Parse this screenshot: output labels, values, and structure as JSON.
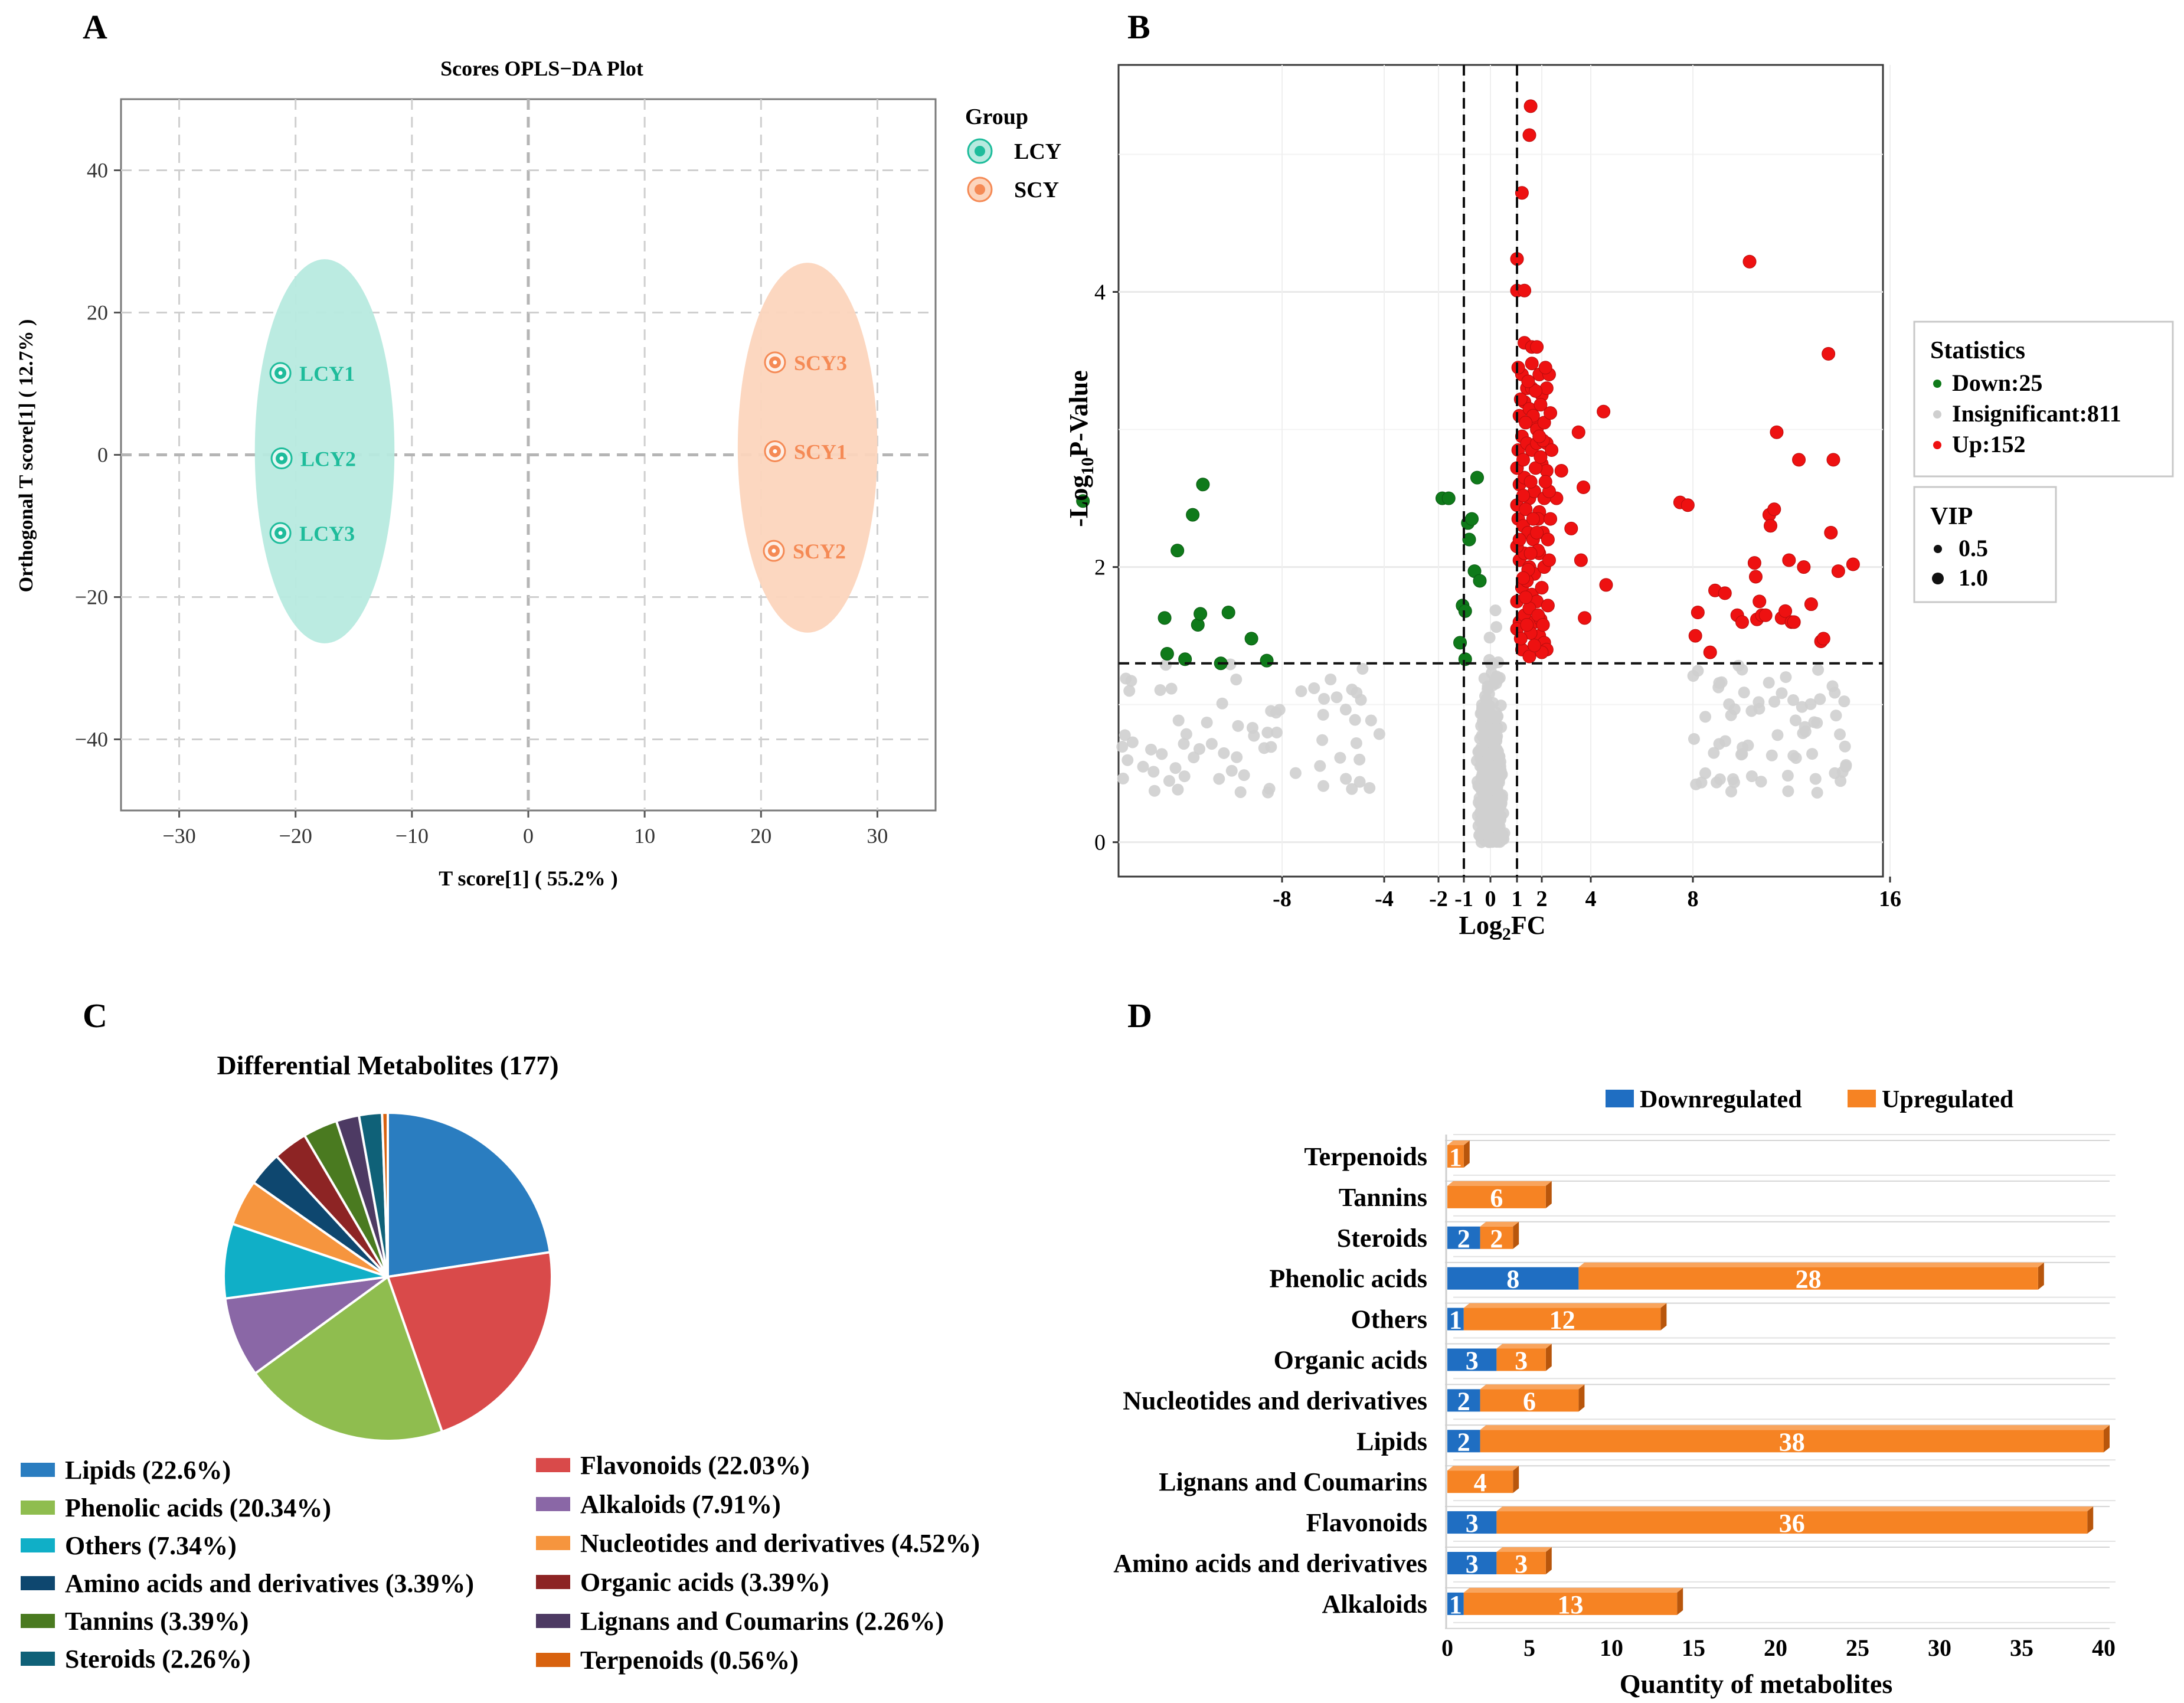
{
  "panels": {
    "a": "A",
    "b": "B",
    "c": "C",
    "d": "D"
  },
  "colors": {
    "lcy": "#1ebc9b",
    "scy": "#f58a55",
    "lcy_fill": "#b7eadf",
    "scy_fill": "#fcd5bd",
    "down": "#0f7a1a",
    "up": "#ee1111",
    "insig": "#cfcfcf",
    "bar_down": "#1f6ec2",
    "bar_up": "#f68323"
  },
  "chart_data": [
    {
      "id": "A",
      "type": "scatter",
      "title": "Scores OPLS−DA Plot",
      "xlabel": "T score[1] ( 55.2% )",
      "ylabel": "Orthogonal T score[1] ( 12.7% )",
      "xlim": [
        -35,
        35
      ],
      "ylim": [
        -50,
        50
      ],
      "xticks": [
        -30,
        -20,
        -10,
        0,
        10,
        20,
        30
      ],
      "xtick_labels": [
        "−30",
        "−20",
        "−10",
        "0",
        "10",
        "20",
        "30"
      ],
      "yticks": [
        -40,
        -20,
        0,
        20,
        40
      ],
      "ytick_labels": [
        "−40",
        "−20",
        "0",
        "20",
        "40"
      ],
      "legend_title": "Group",
      "groups": [
        {
          "name": "LCY",
          "ellipse": {
            "cx": -17.5,
            "cy": 0.5,
            "rx": 6,
            "ry": 27
          },
          "points": [
            {
              "label": "LCY1",
              "x": -21.3,
              "y": 11.5
            },
            {
              "label": "LCY2",
              "x": -21.2,
              "y": -0.5
            },
            {
              "label": "LCY3",
              "x": -21.3,
              "y": -11
            }
          ]
        },
        {
          "name": "SCY",
          "ellipse": {
            "cx": 24,
            "cy": 1,
            "rx": 6,
            "ry": 26
          },
          "points": [
            {
              "label": "SCY3",
              "x": 21.2,
              "y": 13
            },
            {
              "label": "SCY1",
              "x": 21.2,
              "y": 0.5
            },
            {
              "label": "SCY2",
              "x": 21.1,
              "y": -13.5
            }
          ]
        }
      ]
    },
    {
      "id": "B",
      "type": "scatter",
      "xlabel": "Log2FC",
      "ylabel": "-Log10P-Value",
      "xticks": [
        -8,
        -4,
        -2,
        -1,
        0,
        1,
        2,
        4,
        8,
        16
      ],
      "xtick_labels": [
        "-8",
        "-4",
        "-2",
        "-1",
        "0",
        "1",
        "2",
        "4",
        "8",
        "16"
      ],
      "yticks": [
        0,
        2,
        4
      ],
      "ylim": [
        -0.25,
        5.65
      ],
      "vlines": [
        -1,
        1
      ],
      "hline": 1.3,
      "statistics_title": "Statistics",
      "statistics": [
        {
          "label": "Down:25",
          "class": "down"
        },
        {
          "label": "Insignificant:811",
          "class": "insig"
        },
        {
          "label": "Up:152",
          "class": "up"
        }
      ],
      "vip_title": "VIP",
      "vip_legend": [
        "0.5",
        "1.0"
      ],
      "down_points": [
        [
          -15.8,
          2.48
        ],
        [
          -12.6,
          1.63
        ],
        [
          -12.5,
          1.37
        ],
        [
          -12.1,
          2.12
        ],
        [
          -11.8,
          1.33
        ],
        [
          -11.5,
          2.38
        ],
        [
          -11.3,
          1.58
        ],
        [
          -11.2,
          1.66
        ],
        [
          -11.1,
          2.6
        ],
        [
          -10.4,
          1.3
        ],
        [
          -10.1,
          1.67
        ],
        [
          -9.2,
          1.48
        ],
        [
          -8.6,
          1.32
        ],
        [
          -1.85,
          2.5
        ],
        [
          -1.6,
          2.5
        ],
        [
          -1.15,
          1.45
        ],
        [
          -1.05,
          1.72
        ],
        [
          -0.95,
          1.68
        ],
        [
          -0.85,
          2.32
        ],
        [
          -0.8,
          2.2
        ],
        [
          -0.7,
          2.35
        ],
        [
          -0.5,
          2.65
        ],
        [
          -0.95,
          1.33
        ],
        [
          -0.6,
          1.97
        ],
        [
          -0.4,
          1.9
        ]
      ],
      "insig_seed": 811,
      "up_points": [
        [
          1.2,
          4.72
        ],
        [
          1.5,
          5.14
        ],
        [
          1.55,
          5.35
        ],
        [
          1.0,
          4.24
        ],
        [
          1.0,
          4.01
        ],
        [
          1.3,
          4.01
        ],
        [
          1.3,
          3.63
        ],
        [
          1.6,
          3.6
        ],
        [
          1.8,
          3.6
        ],
        [
          1.2,
          3.4
        ],
        [
          1.4,
          3.3
        ],
        [
          1.6,
          3.3
        ],
        [
          1.9,
          3.4
        ],
        [
          2.0,
          3.25
        ],
        [
          2.2,
          3.3
        ],
        [
          2.3,
          3.4
        ],
        [
          1.1,
          3.1
        ],
        [
          1.3,
          3.2
        ],
        [
          1.5,
          3.15
        ],
        [
          1.7,
          3.05
        ],
        [
          1.8,
          3.0
        ],
        [
          1.95,
          3.18
        ],
        [
          2.1,
          3.05
        ],
        [
          2.2,
          2.9
        ],
        [
          1.05,
          2.85
        ],
        [
          1.2,
          2.95
        ],
        [
          1.4,
          2.9
        ],
        [
          1.6,
          2.85
        ],
        [
          1.8,
          2.9
        ],
        [
          2.0,
          2.75
        ],
        [
          2.2,
          2.7
        ],
        [
          2.4,
          2.85
        ],
        [
          2.8,
          2.7
        ],
        [
          3.5,
          2.98
        ],
        [
          2.6,
          2.5
        ],
        [
          3.7,
          2.58
        ],
        [
          1.1,
          2.6
        ],
        [
          1.3,
          2.65
        ],
        [
          1.5,
          2.5
        ],
        [
          1.7,
          2.55
        ],
        [
          1.9,
          2.4
        ],
        [
          2.1,
          2.5
        ],
        [
          2.3,
          2.55
        ],
        [
          1.05,
          2.35
        ],
        [
          1.25,
          2.3
        ],
        [
          1.45,
          2.25
        ],
        [
          1.65,
          2.2
        ],
        [
          1.85,
          2.35
        ],
        [
          2.05,
          2.25
        ],
        [
          2.25,
          2.2
        ],
        [
          1.1,
          2.05
        ],
        [
          1.3,
          2.1
        ],
        [
          1.5,
          2.0
        ],
        [
          1.7,
          1.95
        ],
        [
          1.9,
          2.1
        ],
        [
          2.1,
          2.0
        ],
        [
          1.2,
          1.85
        ],
        [
          1.4,
          1.9
        ],
        [
          1.6,
          1.8
        ],
        [
          1.8,
          1.75
        ],
        [
          2.0,
          1.85
        ],
        [
          1.1,
          1.6
        ],
        [
          1.3,
          1.65
        ],
        [
          1.5,
          1.7
        ],
        [
          1.7,
          1.6
        ],
        [
          1.9,
          1.5
        ],
        [
          2.1,
          1.45
        ],
        [
          1.2,
          1.4
        ],
        [
          1.5,
          1.35
        ],
        [
          2.2,
          1.4
        ],
        [
          1.0,
          1.55
        ],
        [
          1.0,
          1.75
        ],
        [
          1.0,
          2.15
        ],
        [
          1.0,
          2.45
        ],
        [
          1.0,
          2.72
        ],
        [
          1.05,
          3.45
        ],
        [
          1.15,
          3.22
        ],
        [
          1.25,
          2.78
        ],
        [
          1.35,
          2.42
        ],
        [
          1.45,
          1.98
        ],
        [
          1.55,
          1.52
        ],
        [
          1.65,
          3.1
        ],
        [
          1.75,
          2.72
        ],
        [
          1.85,
          2.12
        ],
        [
          1.95,
          1.62
        ],
        [
          2.05,
          2.92
        ],
        [
          2.15,
          2.62
        ],
        [
          2.25,
          1.72
        ],
        [
          2.35,
          3.12
        ],
        [
          1.35,
          1.78
        ],
        [
          1.55,
          2.62
        ],
        [
          1.75,
          3.28
        ],
        [
          1.95,
          2.8
        ],
        [
          2.15,
          3.45
        ],
        [
          2.35,
          2.35
        ],
        [
          1.15,
          1.48
        ],
        [
          1.25,
          1.92
        ],
        [
          1.45,
          3.35
        ],
        [
          1.65,
          2.35
        ],
        [
          1.85,
          1.65
        ],
        [
          2.0,
          1.38
        ],
        [
          2.3,
          2.05
        ],
        [
          1.1,
          2.2
        ],
        [
          1.4,
          1.58
        ],
        [
          1.6,
          3.48
        ],
        [
          1.9,
          2.95
        ],
        [
          1.25,
          2.52
        ],
        [
          2.05,
          1.58
        ],
        [
          1.35,
          3.05
        ],
        [
          1.8,
          2.25
        ],
        [
          1.55,
          2.1
        ],
        [
          1.7,
          1.43
        ],
        [
          4.5,
          3.13
        ],
        [
          3.2,
          2.28
        ],
        [
          3.6,
          2.05
        ],
        [
          3.75,
          1.63
        ],
        [
          4.6,
          1.87
        ],
        [
          7.5,
          2.47
        ],
        [
          7.8,
          2.45
        ],
        [
          8.1,
          1.5
        ],
        [
          8.2,
          1.67
        ],
        [
          8.7,
          1.38
        ],
        [
          8.9,
          1.83
        ],
        [
          9.3,
          1.81
        ],
        [
          9.8,
          1.65
        ],
        [
          10.0,
          1.6
        ],
        [
          10.3,
          4.22
        ],
        [
          10.5,
          2.03
        ],
        [
          10.55,
          1.93
        ],
        [
          10.6,
          1.62
        ],
        [
          10.7,
          1.75
        ],
        [
          10.8,
          1.65
        ],
        [
          10.95,
          1.65
        ],
        [
          11.1,
          2.38
        ],
        [
          11.15,
          2.3
        ],
        [
          11.3,
          2.42
        ],
        [
          11.4,
          2.98
        ],
        [
          11.6,
          1.63
        ],
        [
          11.75,
          1.68
        ],
        [
          11.9,
          2.05
        ],
        [
          12.0,
          1.6
        ],
        [
          12.1,
          1.6
        ],
        [
          12.3,
          2.78
        ],
        [
          12.5,
          2.0
        ],
        [
          12.8,
          1.73
        ],
        [
          13.2,
          1.46
        ],
        [
          13.3,
          1.48
        ],
        [
          13.5,
          3.55
        ],
        [
          13.6,
          2.25
        ],
        [
          13.7,
          2.78
        ],
        [
          13.9,
          1.97
        ],
        [
          14.5,
          2.02
        ]
      ]
    },
    {
      "id": "C",
      "type": "pie",
      "title": "Differential Metabolites (177)",
      "slices": [
        {
          "label": "Lipids (22.6%)",
          "value": 22.6,
          "color": "#2a7dc0"
        },
        {
          "label": "Flavonoids (22.03%)",
          "value": 22.03,
          "color": "#d94a4a"
        },
        {
          "label": "Phenolic acids (20.34%)",
          "value": 20.34,
          "color": "#8fbd4f"
        },
        {
          "label": "Alkaloids (7.91%)",
          "value": 7.91,
          "color": "#8a67a6"
        },
        {
          "label": "Others (7.34%)",
          "value": 7.34,
          "color": "#10afc7"
        },
        {
          "label": "Nucleotides and derivatives (4.52%)",
          "value": 4.52,
          "color": "#f6953e"
        },
        {
          "label": "Amino acids and derivatives (3.39%)",
          "value": 3.39,
          "color": "#0e476f"
        },
        {
          "label": "Organic acids (3.39%)",
          "value": 3.39,
          "color": "#8d2424"
        },
        {
          "label": "Tannins (3.39%)",
          "value": 3.39,
          "color": "#4a7a20"
        },
        {
          "label": "Lignans and Coumarins (2.26%)",
          "value": 2.26,
          "color": "#4d3a63"
        },
        {
          "label": "Steroids (2.26%)",
          "value": 2.26,
          "color": "#0f6178"
        },
        {
          "label": "Terpenoids (0.56%)",
          "value": 0.56,
          "color": "#d8620f"
        }
      ]
    },
    {
      "id": "D",
      "type": "bar",
      "orientation": "horizontal",
      "stacked": true,
      "xlabel": "Quantity of metabolites",
      "xlim": [
        0,
        40
      ],
      "xticks": [
        0,
        5,
        10,
        15,
        20,
        25,
        30,
        35,
        40
      ],
      "categories": [
        "Terpenoids",
        "Tannins",
        "Steroids",
        "Phenolic acids",
        "Others",
        "Organic acids",
        "Nucleotides and derivatives",
        "Lipids",
        "Lignans and Coumarins",
        "Flavonoids",
        "Amino acids and derivatives",
        "Alkaloids"
      ],
      "series": [
        {
          "name": "Downregulated",
          "values": [
            0,
            0,
            2,
            8,
            1,
            3,
            2,
            2,
            0,
            3,
            3,
            1
          ]
        },
        {
          "name": "Upregulated",
          "values": [
            1,
            6,
            2,
            28,
            12,
            3,
            6,
            38,
            4,
            36,
            3,
            13
          ]
        }
      ]
    }
  ]
}
